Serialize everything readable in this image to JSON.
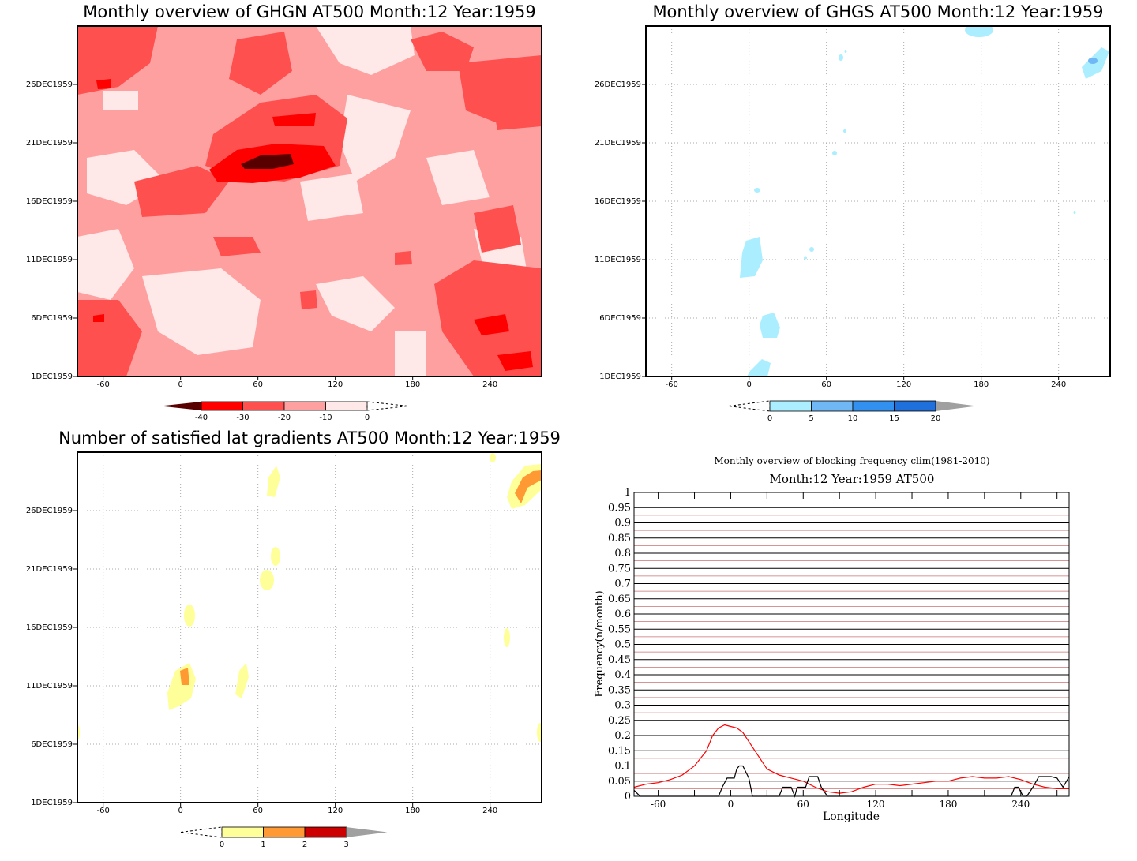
{
  "panels": {
    "ghgn": {
      "title": "Monthly overview of GHGN AT500 Month:12 Year:1959",
      "colorbar_labels": [
        "-40",
        "-30",
        "-20",
        "-10",
        "0"
      ],
      "colorbar_colors": [
        "#580000",
        "#ff0000",
        "#ff5050",
        "#ffa0a0",
        "#ffe8e8"
      ]
    },
    "ghgs": {
      "title": "Monthly overview of GHGS AT500 Month:12 Year:1959",
      "colorbar_labels": [
        "0",
        "5",
        "10",
        "15",
        "20"
      ],
      "colorbar_colors": [
        "#aaeeff",
        "#70b8f5",
        "#3290f0",
        "#1f6fdc",
        "#a0a0a0"
      ]
    },
    "lat_gradients": {
      "title": "Number of satisfied lat gradients AT500 Month:12 Year:1959",
      "colorbar_labels": [
        "0",
        "1",
        "2",
        "3"
      ],
      "colorbar_colors": [
        "#ffff99",
        "#ff9933",
        "#cc0000",
        "#a0a0a0"
      ]
    },
    "map_axes": {
      "x_ticks": [
        "-60",
        "0",
        "60",
        "120",
        "180",
        "240"
      ],
      "y_ticks": [
        "1DEC1959",
        "6DEC1959",
        "11DEC1959",
        "16DEC1959",
        "21DEC1959",
        "26DEC1959"
      ]
    }
  },
  "chart_data": [
    {
      "type": "heatmap",
      "title": "Monthly overview of GHGN AT500 Month:12 Year:1959",
      "x_ticks": [
        -60,
        0,
        60,
        120,
        180,
        240
      ],
      "xlim": [
        -80,
        280
      ],
      "y_ticks": [
        "1DEC1959",
        "6DEC1959",
        "11DEC1959",
        "16DEC1959",
        "21DEC1959",
        "26DEC1959"
      ],
      "colorbar": [
        -40,
        -30,
        -20,
        -10,
        0
      ]
    },
    {
      "type": "heatmap",
      "title": "Monthly overview of GHGS AT500 Month:12 Year:1959",
      "x_ticks": [
        -60,
        0,
        60,
        120,
        180,
        240
      ],
      "xlim": [
        -80,
        280
      ],
      "y_ticks": [
        "1DEC1959",
        "6DEC1959",
        "11DEC1959",
        "16DEC1959",
        "21DEC1959",
        "26DEC1959"
      ],
      "colorbar": [
        0,
        5,
        10,
        15,
        20
      ]
    },
    {
      "type": "heatmap",
      "title": "Number of satisfied lat gradients AT500 Month:12 Year:1959",
      "x_ticks": [
        -60,
        0,
        60,
        120,
        180,
        240
      ],
      "xlim": [
        -80,
        280
      ],
      "y_ticks": [
        "1DEC1959",
        "6DEC1959",
        "11DEC1959",
        "16DEC1959",
        "21DEC1959",
        "26DEC1959"
      ],
      "colorbar": [
        0,
        1,
        2,
        3
      ]
    },
    {
      "type": "line",
      "title": "Monthly overview of blocking frequency clim(1981-2010)",
      "subtitle": "Month:12 Year:1959  AT500",
      "xlabel": "Longitude",
      "ylabel": "Frequency(n/month)",
      "xlim": [
        -80,
        280
      ],
      "ylim": [
        0,
        1
      ],
      "x_ticks": [
        -60,
        0,
        60,
        120,
        180,
        240
      ],
      "y_ticks": [
        "0",
        "0.05",
        "0.1",
        "0.15",
        "0.2",
        "0.25",
        "0.3",
        "0.35",
        "0.4",
        "0.45",
        "0.5",
        "0.55",
        "0.6",
        "0.65",
        "0.7",
        "0.75",
        "0.8",
        "0.85",
        "0.9",
        "0.95",
        "1"
      ],
      "series": [
        {
          "color": "#ff0000",
          "x": [
            -80,
            -70,
            -60,
            -50,
            -40,
            -30,
            -20,
            -15,
            -10,
            -5,
            0,
            5,
            10,
            15,
            20,
            25,
            30,
            35,
            40,
            45,
            50,
            60,
            70,
            80,
            90,
            100,
            110,
            120,
            130,
            140,
            150,
            160,
            170,
            180,
            190,
            200,
            210,
            220,
            230,
            240,
            250,
            260,
            270,
            280
          ],
          "y": [
            0.03,
            0.04,
            0.045,
            0.055,
            0.07,
            0.1,
            0.15,
            0.2,
            0.225,
            0.235,
            0.23,
            0.225,
            0.21,
            0.18,
            0.15,
            0.12,
            0.09,
            0.08,
            0.07,
            0.065,
            0.06,
            0.05,
            0.03,
            0.015,
            0.01,
            0.015,
            0.03,
            0.04,
            0.04,
            0.035,
            0.04,
            0.045,
            0.05,
            0.05,
            0.06,
            0.065,
            0.06,
            0.06,
            0.065,
            0.055,
            0.04,
            0.03,
            0.025,
            0.025
          ]
        },
        {
          "color": "#000000",
          "x": [
            -80,
            -75,
            -10,
            -7,
            -3,
            0,
            3,
            5,
            7,
            10,
            15,
            18,
            40,
            43,
            50,
            53,
            55,
            62,
            65,
            68,
            72,
            75,
            80,
            232,
            235,
            238,
            242,
            245,
            250,
            255,
            262,
            265,
            270,
            275,
            280
          ],
          "y": [
            0.02,
            0,
            0,
            0.03,
            0.06,
            0.06,
            0.06,
            0.09,
            0.1,
            0.1,
            0.06,
            0,
            0,
            0.03,
            0.03,
            0,
            0.03,
            0.03,
            0.065,
            0.065,
            0.065,
            0.03,
            0,
            0,
            0.03,
            0.03,
            0,
            0,
            0.03,
            0.065,
            0.065,
            0.065,
            0.06,
            0.03,
            0.065
          ]
        }
      ]
    }
  ]
}
